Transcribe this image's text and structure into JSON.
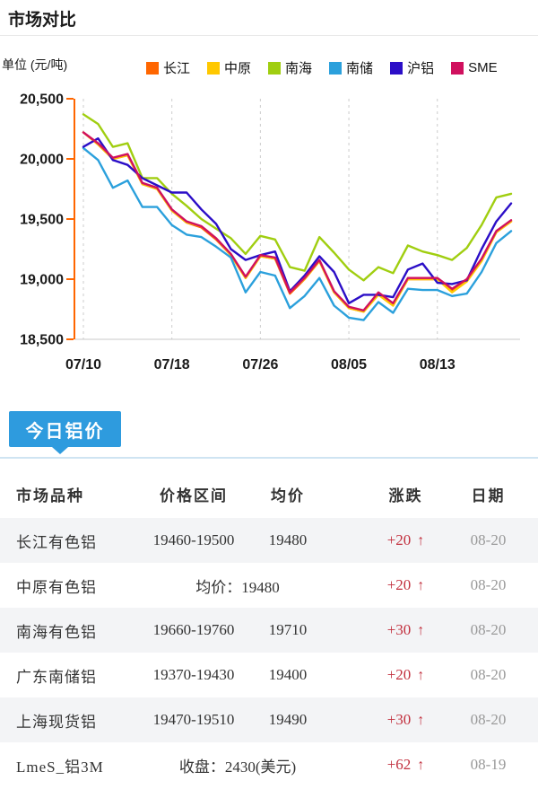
{
  "header": {
    "title": "市场对比"
  },
  "chart_data": {
    "type": "line",
    "title": "市场对比",
    "ylabel": "单位 (元/吨)",
    "ylim": [
      18500,
      20500
    ],
    "y_ticks": [
      18500,
      19000,
      19500,
      20000,
      20500
    ],
    "y_tick_labels": [
      "18,500",
      "19,000",
      "19,500",
      "20,000",
      "20,500"
    ],
    "x_tick_indices": [
      0,
      6,
      12,
      18,
      24
    ],
    "x_tick_labels": [
      "07/10",
      "07/18",
      "07/26",
      "08/05",
      "08/13"
    ],
    "n_points": 30,
    "grid": "vertical-dashed",
    "legend_position": "top",
    "axis_color": "#FF6600",
    "series": [
      {
        "name": "长江",
        "color": "#FF6600",
        "values": [
          20220,
          20120,
          20000,
          20030,
          19790,
          19750,
          19570,
          19470,
          19430,
          19330,
          19200,
          19010,
          19190,
          19170,
          18880,
          19000,
          19150,
          18890,
          18760,
          18730,
          18880,
          18790,
          19000,
          19000,
          19000,
          18910,
          18990,
          19160,
          19390,
          19480
        ]
      },
      {
        "name": "中原",
        "color": "#FFC800",
        "values": [
          20220,
          20120,
          20000,
          20030,
          19790,
          19750,
          19570,
          19470,
          19440,
          19340,
          19200,
          19010,
          19190,
          19170,
          18900,
          19000,
          19150,
          18890,
          18760,
          18730,
          18870,
          18780,
          19000,
          19000,
          19000,
          18890,
          18980,
          19150,
          19390,
          19480
        ]
      },
      {
        "name": "南海",
        "color": "#A0CE10",
        "values": [
          20370,
          20290,
          20100,
          20130,
          19840,
          19840,
          19710,
          19610,
          19500,
          19420,
          19340,
          19210,
          19360,
          19330,
          19100,
          19070,
          19350,
          19220,
          19080,
          18990,
          19100,
          19050,
          19280,
          19230,
          19200,
          19160,
          19260,
          19450,
          19680,
          19710
        ]
      },
      {
        "name": "南储",
        "color": "#2BA0DC",
        "values": [
          20090,
          19990,
          19760,
          19820,
          19600,
          19600,
          19450,
          19370,
          19350,
          19270,
          19180,
          18890,
          19060,
          19030,
          18760,
          18860,
          19010,
          18780,
          18680,
          18660,
          18810,
          18720,
          18920,
          18910,
          18910,
          18860,
          18880,
          19060,
          19300,
          19400
        ]
      },
      {
        "name": "沪铝",
        "color": "#2B0EC7",
        "values": [
          20100,
          20170,
          19990,
          19950,
          19840,
          19780,
          19720,
          19720,
          19580,
          19460,
          19250,
          19160,
          19200,
          19230,
          18900,
          19030,
          19190,
          19060,
          18800,
          18870,
          18870,
          18850,
          19080,
          19130,
          18970,
          18960,
          18990,
          19250,
          19480,
          19630
        ]
      },
      {
        "name": "SME",
        "color": "#D0105E",
        "values": [
          20220,
          20130,
          20010,
          20040,
          19800,
          19760,
          19580,
          19480,
          19440,
          19340,
          19210,
          19020,
          19200,
          19180,
          18890,
          19010,
          19160,
          18900,
          18770,
          18740,
          18890,
          18800,
          19010,
          19010,
          19010,
          18920,
          19000,
          19170,
          19400,
          19490
        ]
      }
    ]
  },
  "today_button": {
    "label": "今日铝价",
    "color": "#2E9BDE"
  },
  "table": {
    "headers": [
      "市场品种",
      "价格区间",
      "均价",
      "涨跌",
      "日期"
    ],
    "up_arrow": "↑",
    "change_color": "#C2303E",
    "rows": [
      {
        "name": "长江有色铝",
        "range": "19460-19500",
        "avg": "19480",
        "change": "+20",
        "date": "08-20"
      },
      {
        "name": "中原有色铝",
        "merged": "均价：19480",
        "change": "+20",
        "date": "08-20"
      },
      {
        "name": "南海有色铝",
        "range": "19660-19760",
        "avg": "19710",
        "change": "+30",
        "date": "08-20"
      },
      {
        "name": "广东南储铝",
        "range": "19370-19430",
        "avg": "19400",
        "change": "+20",
        "date": "08-20"
      },
      {
        "name": "上海现货铝",
        "range": "19470-19510",
        "avg": "19490",
        "change": "+30",
        "date": "08-20"
      },
      {
        "name": "LmeS_铝3M",
        "merged": "收盘：2430(美元)",
        "change": "+62",
        "date": "08-19"
      }
    ]
  }
}
